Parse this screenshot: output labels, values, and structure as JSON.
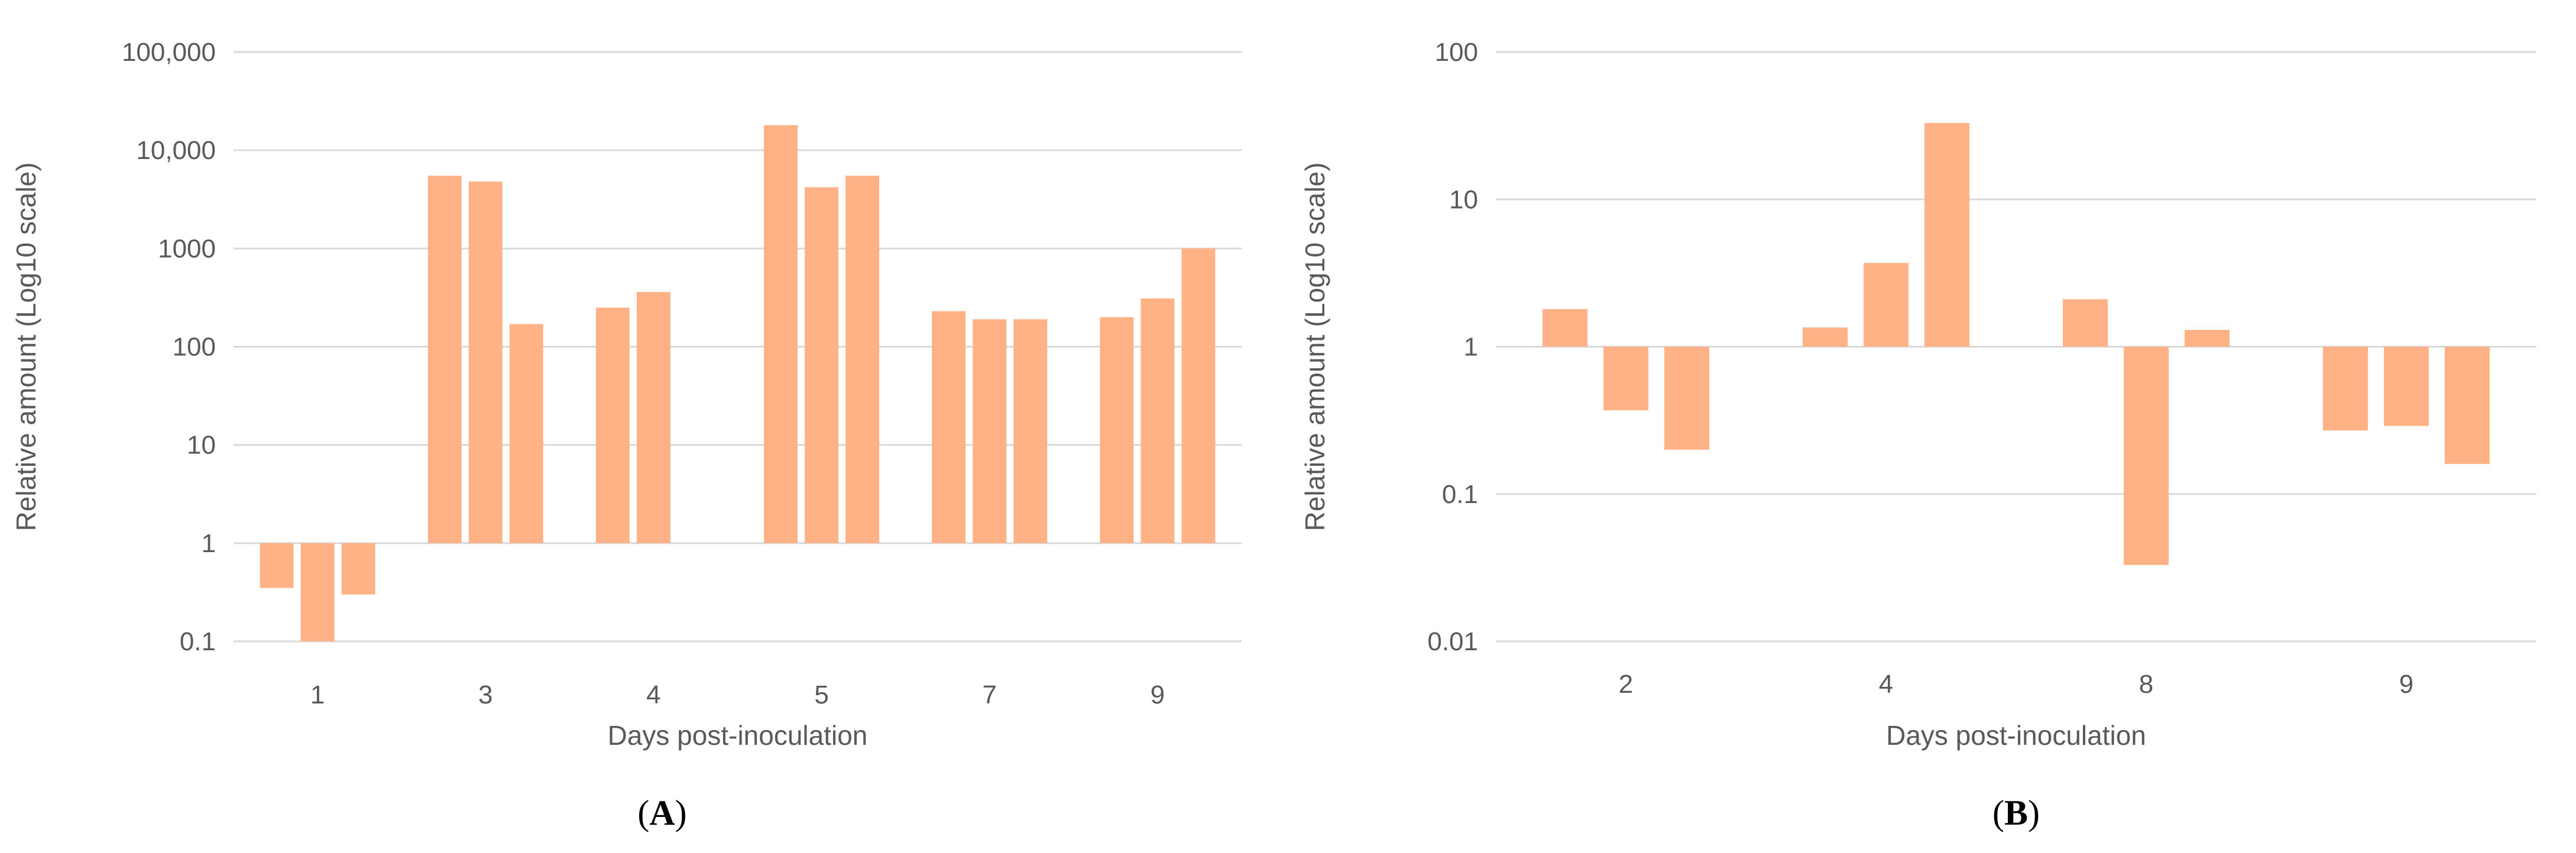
{
  "chart_data": [
    {
      "type": "bar",
      "panel_label": "A",
      "scale": "log10",
      "xlabel": "Days post-inoculation",
      "ylabel": "Relative amount (Log10 scale)",
      "y_tick_labels": [
        "0.1",
        "1",
        "10",
        "100",
        "1000",
        "10,000",
        "100,000"
      ],
      "ylim": [
        0.1,
        100000
      ],
      "baseline": 1,
      "grid": true,
      "bar_color": "#FFB286",
      "categories": [
        {
          "label": "1",
          "values": [
            0.35,
            0.1,
            0.3
          ]
        },
        {
          "label": "3",
          "values": [
            5500,
            4800,
            170
          ]
        },
        {
          "label": "4",
          "values": [
            250,
            360
          ]
        },
        {
          "label": "5",
          "values": [
            18000,
            4200,
            5500
          ]
        },
        {
          "label": "7",
          "values": [
            230,
            190,
            190
          ]
        },
        {
          "label": "9",
          "values": [
            200,
            310,
            1000
          ]
        }
      ]
    },
    {
      "type": "bar",
      "panel_label": "B",
      "scale": "log10",
      "xlabel": "Days post-inoculation",
      "ylabel": "Relative amount (Log10 scale)",
      "y_tick_labels": [
        "0.01",
        "0.1",
        "1",
        "10",
        "100"
      ],
      "ylim": [
        0.01,
        100
      ],
      "baseline": 1,
      "grid": true,
      "bar_color": "#FFB286",
      "categories": [
        {
          "label": "2",
          "values": [
            1.8,
            0.37,
            0.2
          ]
        },
        {
          "label": "4",
          "values": [
            1.35,
            3.7,
            33
          ]
        },
        {
          "label": "8",
          "values": [
            2.1,
            0.033,
            1.3
          ]
        },
        {
          "label": "9",
          "values": [
            0.27,
            0.29,
            0.16
          ]
        }
      ]
    }
  ]
}
